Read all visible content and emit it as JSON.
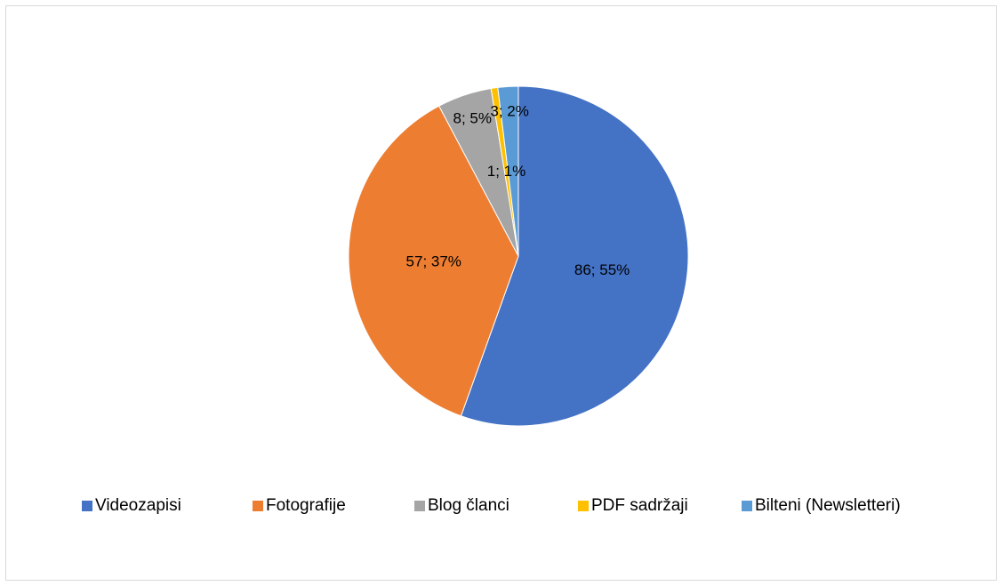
{
  "chart_data": {
    "type": "pie",
    "categories": [
      "Videozapisi",
      "Fotografije",
      "Blog članci",
      "PDF sadržaji",
      "Bilteni (Newsletteri)"
    ],
    "values": [
      86,
      57,
      8,
      1,
      3
    ],
    "value_labels": [
      "86; 55%",
      "57; 37%",
      "8; 5%",
      "1; 1%",
      "3; 2%"
    ],
    "colors": [
      "#4472c4",
      "#ed7d31",
      "#a5a5a5",
      "#ffc000",
      "#5b9bd5"
    ],
    "legend": "bottom"
  }
}
